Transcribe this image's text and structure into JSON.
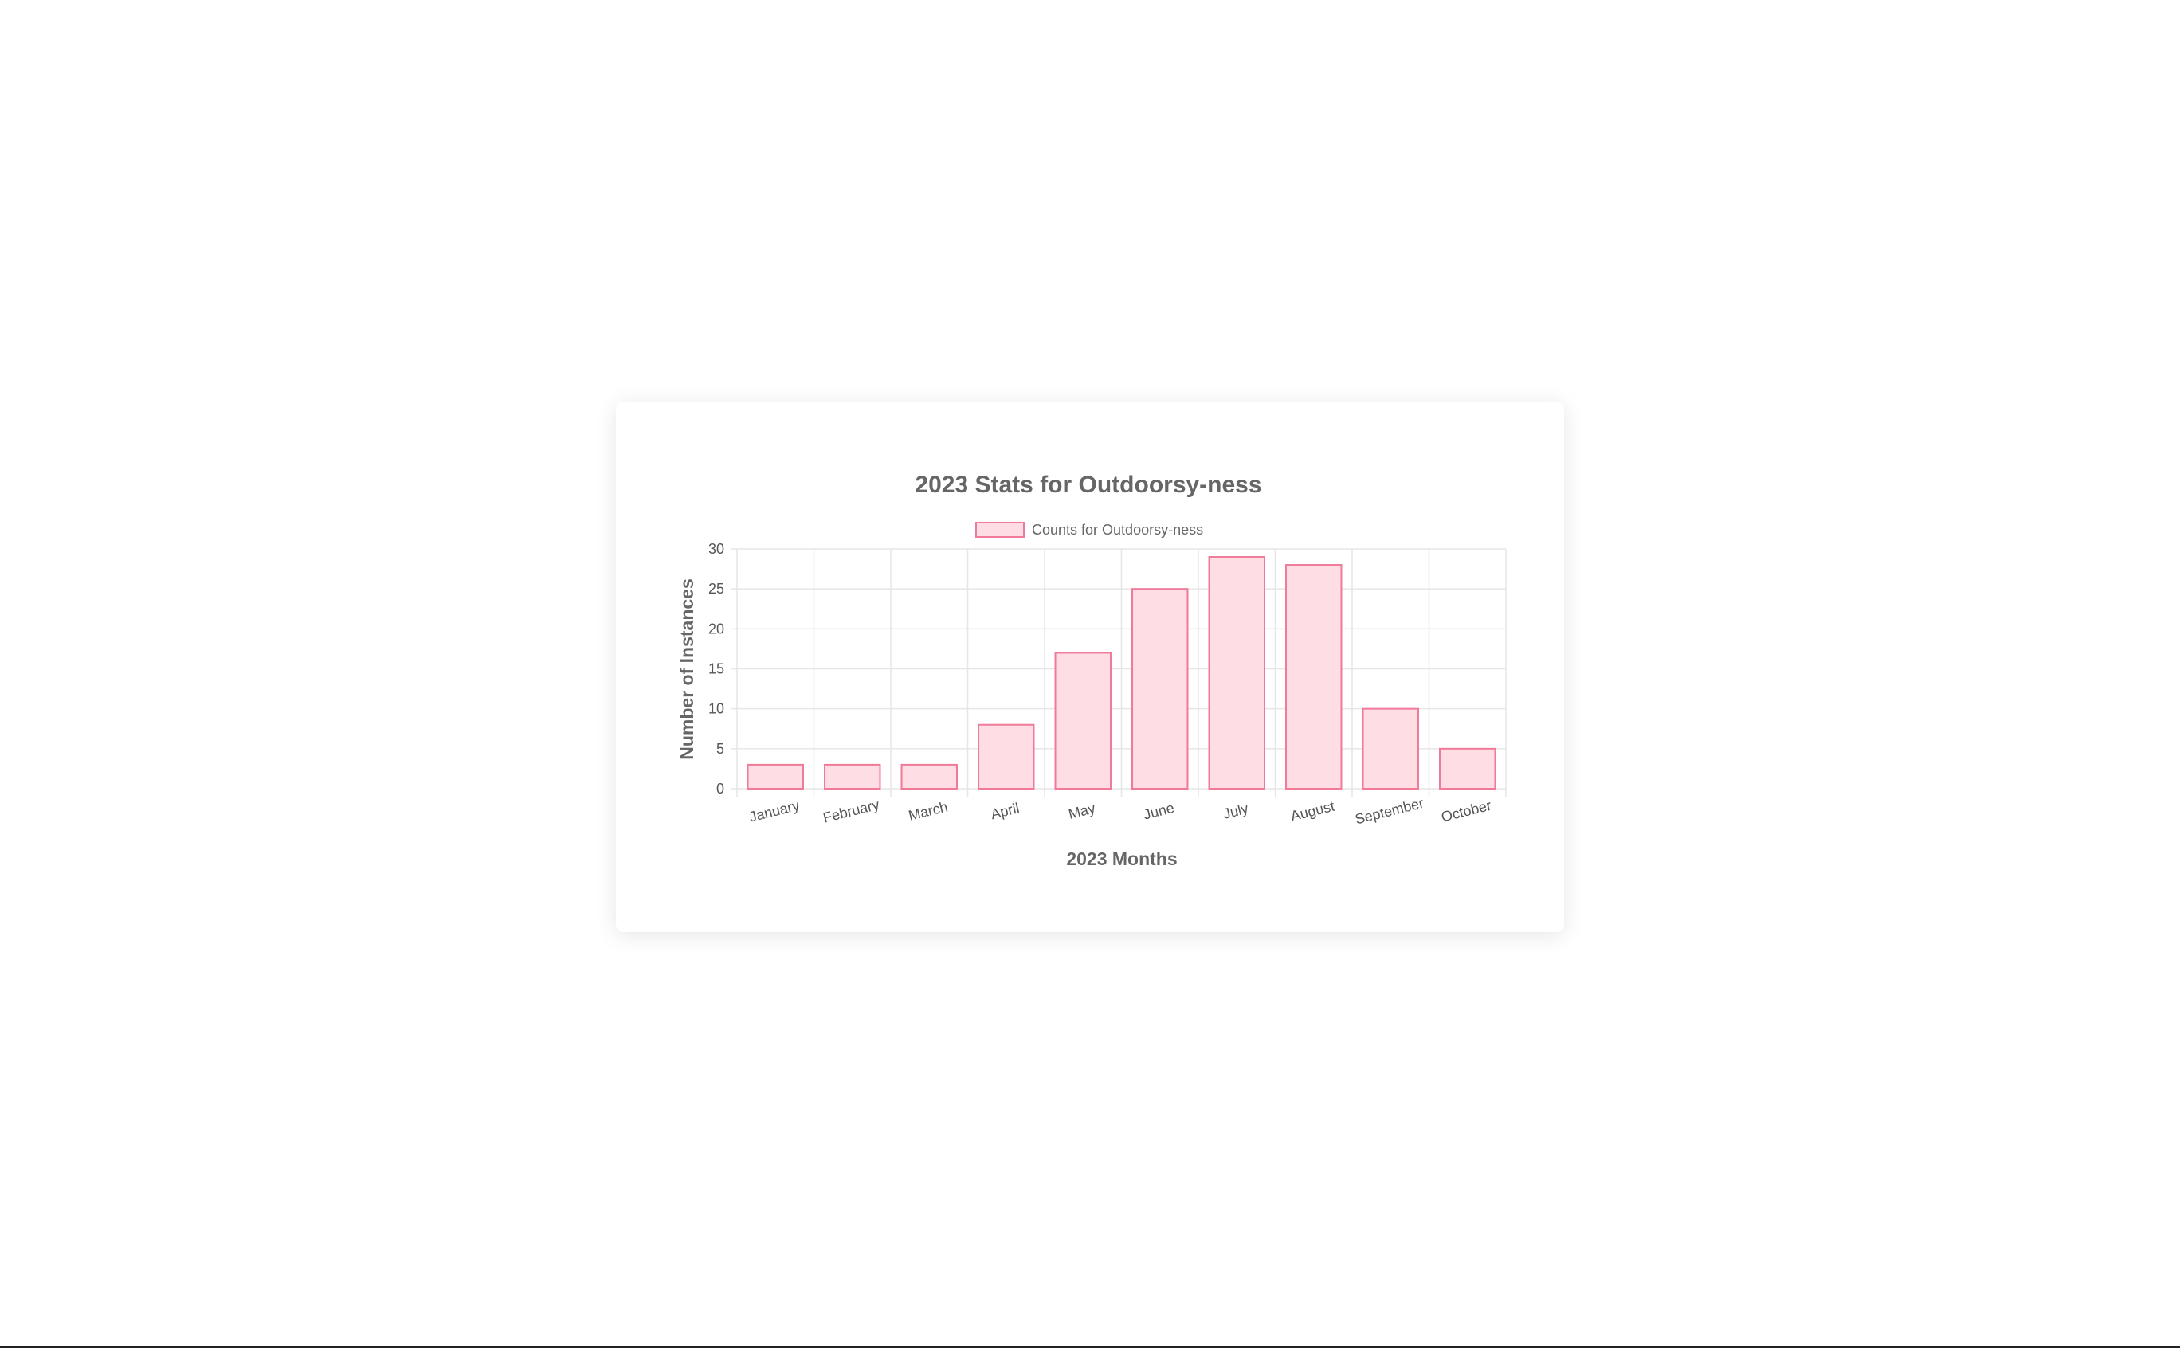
{
  "colors": {
    "bar_fill": "#ffdde4",
    "bar_stroke": "#f07a98",
    "grid": "#e6e6e6",
    "text": "#666666",
    "tick_text": "#555555"
  },
  "chart_data": {
    "type": "bar",
    "title": "2023 Stats for Outdoorsy-ness",
    "xlabel": "2023 Months",
    "ylabel": "Number of Instances",
    "categories": [
      "January",
      "February",
      "March",
      "April",
      "May",
      "June",
      "July",
      "August",
      "September",
      "October"
    ],
    "series": [
      {
        "name": "Counts for Outdoorsy-ness",
        "values": [
          3,
          3,
          3,
          8,
          17,
          25,
          29,
          28,
          10,
          5
        ]
      }
    ],
    "ylim": [
      0,
      30
    ],
    "yticks": [
      "0",
      "5",
      "10",
      "15",
      "20",
      "25",
      "30"
    ],
    "grid": true,
    "legend_position": "top"
  }
}
